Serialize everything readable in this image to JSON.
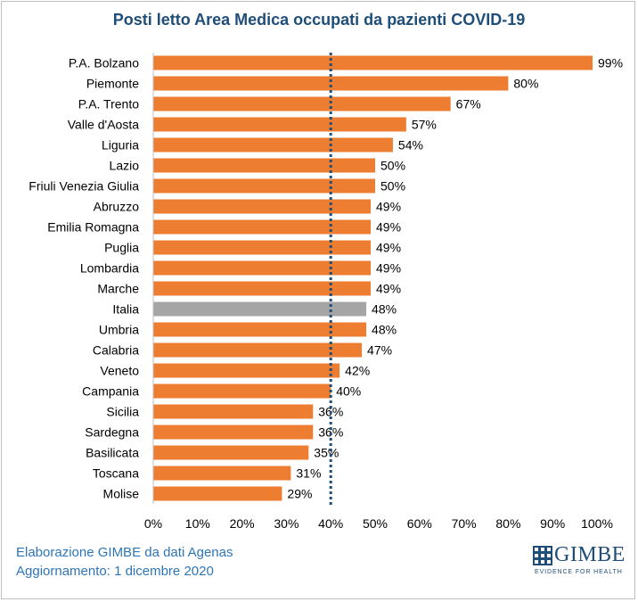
{
  "chart_data": {
    "type": "bar",
    "orientation": "horizontal",
    "title": "Posti letto Area Medica occupati da pazienti COVID-19",
    "categories": [
      "P.A. Bolzano",
      "Piemonte",
      "P.A. Trento",
      "Valle d'Aosta",
      "Liguria",
      "Lazio",
      "Friuli Venezia Giulia",
      "Abruzzo",
      "Emilia Romagna",
      "Puglia",
      "Lombardia",
      "Marche",
      "Italia",
      "Umbria",
      "Calabria",
      "Veneto",
      "Campania",
      "Sicilia",
      "Sardegna",
      "Basilicata",
      "Toscana",
      "Molise"
    ],
    "values": [
      99,
      80,
      67,
      57,
      54,
      50,
      50,
      49,
      49,
      49,
      49,
      49,
      48,
      48,
      47,
      42,
      40,
      36,
      36,
      35,
      31,
      29
    ],
    "value_labels": [
      "99%",
      "80%",
      "67%",
      "57%",
      "54%",
      "50%",
      "50%",
      "49%",
      "49%",
      "49%",
      "49%",
      "49%",
      "48%",
      "48%",
      "47%",
      "42%",
      "40%",
      "36%",
      "36%",
      "35%",
      "31%",
      "29%"
    ],
    "highlight_category": "Italia",
    "xlim": [
      0,
      100
    ],
    "x_ticks": [
      "0%",
      "10%",
      "20%",
      "30%",
      "40%",
      "50%",
      "60%",
      "70%",
      "80%",
      "90%",
      "100%"
    ],
    "threshold": 40,
    "colors": {
      "bar": "#ed7d31",
      "highlight": "#a5a5a5",
      "threshold": "#1f4e79",
      "title": "#1f4e79"
    },
    "grid": false,
    "legend": "none"
  },
  "footer": {
    "line1": "Elaborazione GIMBE da dati Agenas",
    "line2": "Aggiornamento: 1 dicembre 2020"
  },
  "logo": {
    "name": "GIMBE",
    "tagline": "EVIDENCE FOR HEALTH"
  }
}
